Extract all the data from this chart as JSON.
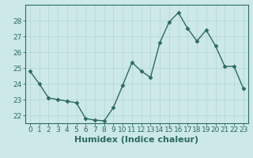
{
  "x": [
    0,
    1,
    2,
    3,
    4,
    5,
    6,
    7,
    8,
    9,
    10,
    11,
    12,
    13,
    14,
    15,
    16,
    17,
    18,
    19,
    20,
    21,
    22,
    23
  ],
  "y": [
    24.8,
    24.0,
    23.1,
    23.0,
    22.9,
    22.8,
    21.8,
    21.7,
    21.65,
    22.5,
    23.9,
    25.35,
    24.8,
    24.4,
    26.6,
    27.9,
    28.5,
    27.5,
    26.7,
    27.4,
    26.4,
    25.1,
    25.1,
    23.7
  ],
  "line_color": "#2d6b5e",
  "marker": "D",
  "marker_size": 2.5,
  "bg_color": "#cce8e8",
  "grid_color": "#b8d8d8",
  "xlabel": "Humidex (Indice chaleur)",
  "xlim": [
    -0.5,
    23.5
  ],
  "ylim": [
    21.5,
    29.0
  ],
  "yticks": [
    22,
    23,
    24,
    25,
    26,
    27,
    28
  ],
  "xticks": [
    0,
    1,
    2,
    3,
    4,
    5,
    6,
    7,
    8,
    9,
    10,
    11,
    12,
    13,
    14,
    15,
    16,
    17,
    18,
    19,
    20,
    21,
    22,
    23
  ],
  "tick_label_fontsize": 6.5,
  "xlabel_fontsize": 8,
  "line_width": 1.0
}
